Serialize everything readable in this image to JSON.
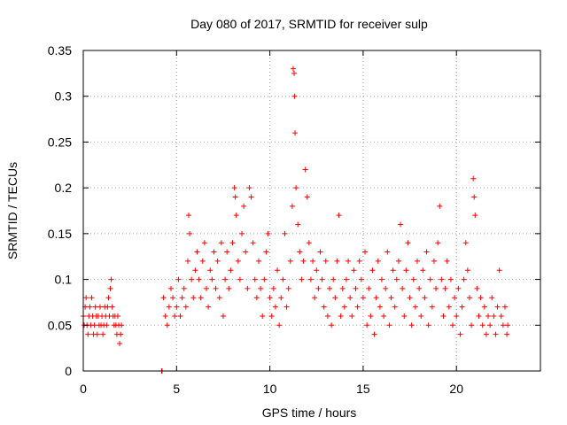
{
  "chart_data": {
    "type": "scatter",
    "title": "Day 080 of 2017, SRMTID for receiver sulp",
    "xlabel": "GPS time / hours",
    "ylabel": "SRMTID / TECUs",
    "xlim": [
      0,
      24.5
    ],
    "ylim": [
      0,
      0.35
    ],
    "xticks": [
      0,
      5,
      10,
      15,
      20
    ],
    "xtick_labels": [
      "0",
      "5",
      "10",
      "15",
      "20"
    ],
    "yticks": [
      0,
      0.05,
      0.1,
      0.15,
      0.2,
      0.25,
      0.3,
      0.35
    ],
    "ytick_labels": [
      "0",
      "0.05",
      "0.1",
      "0.15",
      "0.2",
      "0.25",
      "0.3",
      "0.35"
    ],
    "grid": true,
    "marker": "+",
    "color": "#ff0000",
    "series": [
      {
        "name": "SRMTID",
        "points": [
          [
            0.0,
            0.06
          ],
          [
            0.05,
            0.05
          ],
          [
            0.1,
            0.07
          ],
          [
            0.15,
            0.08
          ],
          [
            0.2,
            0.05
          ],
          [
            0.25,
            0.04
          ],
          [
            0.3,
            0.06
          ],
          [
            0.35,
            0.07
          ],
          [
            0.4,
            0.05
          ],
          [
            0.45,
            0.08
          ],
          [
            0.5,
            0.06
          ],
          [
            0.55,
            0.04
          ],
          [
            0.6,
            0.05
          ],
          [
            0.65,
            0.07
          ],
          [
            0.7,
            0.06
          ],
          [
            0.75,
            0.04
          ],
          [
            0.8,
            0.06
          ],
          [
            0.85,
            0.05
          ],
          [
            0.9,
            0.07
          ],
          [
            0.95,
            0.05
          ],
          [
            1.0,
            0.06
          ],
          [
            1.05,
            0.04
          ],
          [
            1.1,
            0.05
          ],
          [
            1.15,
            0.07
          ],
          [
            1.2,
            0.06
          ],
          [
            1.25,
            0.05
          ],
          [
            1.3,
            0.07
          ],
          [
            1.35,
            0.08
          ],
          [
            1.4,
            0.06
          ],
          [
            1.45,
            0.09
          ],
          [
            1.5,
            0.1
          ],
          [
            1.55,
            0.07
          ],
          [
            1.6,
            0.06
          ],
          [
            1.65,
            0.05
          ],
          [
            1.7,
            0.06
          ],
          [
            1.75,
            0.05
          ],
          [
            1.8,
            0.04
          ],
          [
            1.85,
            0.06
          ],
          [
            1.9,
            0.05
          ],
          [
            1.95,
            0.03
          ],
          [
            2.0,
            0.04
          ],
          [
            2.05,
            0.05
          ],
          [
            4.2,
            0.0
          ],
          [
            4.22,
            0.0
          ],
          [
            4.3,
            0.08
          ],
          [
            4.4,
            0.06
          ],
          [
            4.5,
            0.05
          ],
          [
            4.6,
            0.07
          ],
          [
            4.7,
            0.09
          ],
          [
            4.8,
            0.08
          ],
          [
            4.9,
            0.06
          ],
          [
            5.0,
            0.07
          ],
          [
            5.1,
            0.1
          ],
          [
            5.2,
            0.06
          ],
          [
            5.3,
            0.08
          ],
          [
            5.4,
            0.09
          ],
          [
            5.5,
            0.07
          ],
          [
            5.6,
            0.12
          ],
          [
            5.65,
            0.17
          ],
          [
            5.7,
            0.15
          ],
          [
            5.8,
            0.1
          ],
          [
            5.9,
            0.08
          ],
          [
            6.0,
            0.11
          ],
          [
            6.1,
            0.13
          ],
          [
            6.2,
            0.1
          ],
          [
            6.3,
            0.08
          ],
          [
            6.4,
            0.12
          ],
          [
            6.5,
            0.14
          ],
          [
            6.6,
            0.09
          ],
          [
            6.7,
            0.07
          ],
          [
            6.8,
            0.11
          ],
          [
            6.9,
            0.1
          ],
          [
            7.0,
            0.13
          ],
          [
            7.1,
            0.09
          ],
          [
            7.2,
            0.12
          ],
          [
            7.3,
            0.08
          ],
          [
            7.4,
            0.14
          ],
          [
            7.5,
            0.06
          ],
          [
            7.6,
            0.1
          ],
          [
            7.7,
            0.13
          ],
          [
            7.8,
            0.09
          ],
          [
            7.9,
            0.11
          ],
          [
            8.0,
            0.14
          ],
          [
            8.1,
            0.2
          ],
          [
            8.15,
            0.19
          ],
          [
            8.2,
            0.17
          ],
          [
            8.3,
            0.12
          ],
          [
            8.4,
            0.1
          ],
          [
            8.5,
            0.15
          ],
          [
            8.6,
            0.18
          ],
          [
            8.7,
            0.13
          ],
          [
            8.8,
            0.09
          ],
          [
            8.9,
            0.2
          ],
          [
            9.0,
            0.19
          ],
          [
            9.1,
            0.14
          ],
          [
            9.2,
            0.1
          ],
          [
            9.3,
            0.08
          ],
          [
            9.4,
            0.12
          ],
          [
            9.5,
            0.09
          ],
          [
            9.6,
            0.06
          ],
          [
            9.7,
            0.1
          ],
          [
            9.8,
            0.13
          ],
          [
            9.9,
            0.15
          ],
          [
            10.0,
            0.08
          ],
          [
            10.1,
            0.06
          ],
          [
            10.2,
            0.09
          ],
          [
            10.3,
            0.07
          ],
          [
            10.4,
            0.11
          ],
          [
            10.5,
            0.05
          ],
          [
            10.6,
            0.08
          ],
          [
            10.7,
            0.1
          ],
          [
            10.8,
            0.15
          ],
          [
            10.9,
            0.07
          ],
          [
            11.0,
            0.09
          ],
          [
            11.1,
            0.12
          ],
          [
            11.2,
            0.18
          ],
          [
            11.25,
            0.33
          ],
          [
            11.3,
            0.325
          ],
          [
            11.32,
            0.3
          ],
          [
            11.35,
            0.26
          ],
          [
            11.4,
            0.2
          ],
          [
            11.5,
            0.16
          ],
          [
            11.6,
            0.13
          ],
          [
            11.7,
            0.1
          ],
          [
            11.8,
            0.12
          ],
          [
            11.9,
            0.22
          ],
          [
            12.0,
            0.19
          ],
          [
            12.1,
            0.14
          ],
          [
            12.2,
            0.1
          ],
          [
            12.3,
            0.12
          ],
          [
            12.4,
            0.08
          ],
          [
            12.5,
            0.11
          ],
          [
            12.6,
            0.09
          ],
          [
            12.7,
            0.13
          ],
          [
            12.8,
            0.1
          ],
          [
            12.9,
            0.07
          ],
          [
            13.0,
            0.12
          ],
          [
            13.1,
            0.06
          ],
          [
            13.2,
            0.09
          ],
          [
            13.3,
            0.05
          ],
          [
            13.4,
            0.1
          ],
          [
            13.5,
            0.08
          ],
          [
            13.6,
            0.12
          ],
          [
            13.7,
            0.17
          ],
          [
            13.8,
            0.06
          ],
          [
            13.9,
            0.09
          ],
          [
            14.0,
            0.07
          ],
          [
            14.1,
            0.1
          ],
          [
            14.2,
            0.12
          ],
          [
            14.3,
            0.08
          ],
          [
            14.4,
            0.06
          ],
          [
            14.5,
            0.11
          ],
          [
            14.6,
            0.09
          ],
          [
            14.7,
            0.07
          ],
          [
            14.8,
            0.12
          ],
          [
            14.9,
            0.1
          ],
          [
            15.0,
            0.08
          ],
          [
            15.1,
            0.13
          ],
          [
            15.2,
            0.05
          ],
          [
            15.3,
            0.09
          ],
          [
            15.4,
            0.06
          ],
          [
            15.5,
            0.11
          ],
          [
            15.6,
            0.04
          ],
          [
            15.7,
            0.08
          ],
          [
            15.8,
            0.12
          ],
          [
            15.9,
            0.07
          ],
          [
            16.0,
            0.1
          ],
          [
            16.1,
            0.06
          ],
          [
            16.2,
            0.09
          ],
          [
            16.3,
            0.13
          ],
          [
            16.4,
            0.05
          ],
          [
            16.5,
            0.08
          ],
          [
            16.6,
            0.11
          ],
          [
            16.7,
            0.07
          ],
          [
            16.8,
            0.1
          ],
          [
            16.9,
            0.12
          ],
          [
            17.0,
            0.16
          ],
          [
            17.1,
            0.09
          ],
          [
            17.2,
            0.06
          ],
          [
            17.3,
            0.11
          ],
          [
            17.4,
            0.14
          ],
          [
            17.5,
            0.08
          ],
          [
            17.6,
            0.05
          ],
          [
            17.7,
            0.1
          ],
          [
            17.8,
            0.07
          ],
          [
            17.9,
            0.12
          ],
          [
            18.0,
            0.09
          ],
          [
            18.1,
            0.06
          ],
          [
            18.2,
            0.11
          ],
          [
            18.3,
            0.08
          ],
          [
            18.4,
            0.13
          ],
          [
            18.5,
            0.05
          ],
          [
            18.6,
            0.1
          ],
          [
            18.7,
            0.07
          ],
          [
            18.8,
            0.12
          ],
          [
            18.9,
            0.09
          ],
          [
            19.0,
            0.14
          ],
          [
            19.1,
            0.18
          ],
          [
            19.2,
            0.1
          ],
          [
            19.3,
            0.06
          ],
          [
            19.4,
            0.09
          ],
          [
            19.5,
            0.12
          ],
          [
            19.6,
            0.07
          ],
          [
            19.7,
            0.1
          ],
          [
            19.8,
            0.05
          ],
          [
            19.9,
            0.08
          ],
          [
            20.0,
            0.06
          ],
          [
            20.1,
            0.09
          ],
          [
            20.2,
            0.04
          ],
          [
            20.3,
            0.07
          ],
          [
            20.4,
            0.1
          ],
          [
            20.5,
            0.14
          ],
          [
            20.6,
            0.11
          ],
          [
            20.7,
            0.08
          ],
          [
            20.8,
            0.05
          ],
          [
            20.9,
            0.21
          ],
          [
            20.95,
            0.19
          ],
          [
            21.0,
            0.17
          ],
          [
            21.1,
            0.09
          ],
          [
            21.2,
            0.06
          ],
          [
            21.3,
            0.08
          ],
          [
            21.4,
            0.05
          ],
          [
            21.5,
            0.07
          ],
          [
            21.6,
            0.04
          ],
          [
            21.7,
            0.06
          ],
          [
            21.8,
            0.05
          ],
          [
            21.9,
            0.08
          ],
          [
            22.0,
            0.06
          ],
          [
            22.1,
            0.04
          ],
          [
            22.2,
            0.07
          ],
          [
            22.3,
            0.11
          ],
          [
            22.4,
            0.06
          ],
          [
            22.5,
            0.05
          ],
          [
            22.6,
            0.07
          ],
          [
            22.7,
            0.04
          ],
          [
            22.75,
            0.05
          ]
        ]
      }
    ]
  }
}
